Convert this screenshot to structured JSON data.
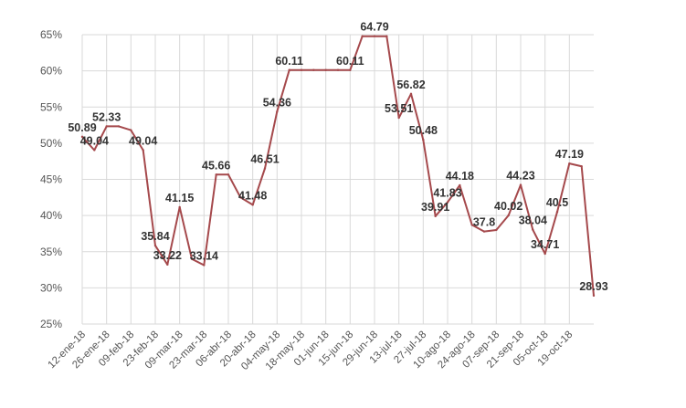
{
  "chart_data": {
    "type": "line",
    "title": "",
    "xlabel": "",
    "ylabel": "",
    "ylim": [
      25,
      65
    ],
    "yticks": [
      "25%",
      "30%",
      "35%",
      "40%",
      "45%",
      "50%",
      "55%",
      "60%",
      "65%"
    ],
    "xticks": [
      "12-ene-18",
      "26-ene-18",
      "09-feb-18",
      "23-feb-18",
      "09-mar-18",
      "23-mar-18",
      "06-abr-18",
      "20-abr-18",
      "04-may-18",
      "18-may-18",
      "01-jun-18",
      "15-jun-18",
      "29-jun-18",
      "13-jul-18",
      "27-jul-18",
      "10-ago-18",
      "24-ago-18",
      "07-sep-18",
      "21-sep-18",
      "05-oct-18",
      "19-oct-18"
    ],
    "grid": true,
    "line_color": "#a5494c",
    "series": [
      {
        "points": [
          {
            "x": 0,
            "y": 50.89,
            "label": "50.89"
          },
          {
            "x": 1,
            "y": 49.04,
            "label": "49.04"
          },
          {
            "x": 2,
            "y": 52.33,
            "label": "52.33"
          },
          {
            "x": 3,
            "y": 52.33,
            "label": ""
          },
          {
            "x": 4,
            "y": 51.8,
            "label": ""
          },
          {
            "x": 5,
            "y": 49.04,
            "label": "49.04"
          },
          {
            "x": 6,
            "y": 35.84,
            "label": "35.84"
          },
          {
            "x": 7,
            "y": 33.22,
            "label": "33.22"
          },
          {
            "x": 8,
            "y": 41.15,
            "label": "41.15"
          },
          {
            "x": 9,
            "y": 34.0,
            "label": ""
          },
          {
            "x": 10,
            "y": 33.14,
            "label": "33.14"
          },
          {
            "x": 11,
            "y": 45.66,
            "label": "45.66"
          },
          {
            "x": 12,
            "y": 45.66,
            "label": ""
          },
          {
            "x": 13,
            "y": 42.5,
            "label": ""
          },
          {
            "x": 14,
            "y": 41.48,
            "label": "41.48"
          },
          {
            "x": 15,
            "y": 46.51,
            "label": "46.51"
          },
          {
            "x": 16,
            "y": 54.36,
            "label": "54.36"
          },
          {
            "x": 17,
            "y": 60.11,
            "label": "60.11"
          },
          {
            "x": 18,
            "y": 60.11,
            "label": ""
          },
          {
            "x": 19,
            "y": 60.11,
            "label": ""
          },
          {
            "x": 20,
            "y": 60.11,
            "label": ""
          },
          {
            "x": 21,
            "y": 60.11,
            "label": ""
          },
          {
            "x": 22,
            "y": 60.11,
            "label": "60.11"
          },
          {
            "x": 23,
            "y": 64.79,
            "label": ""
          },
          {
            "x": 24,
            "y": 64.79,
            "label": "64.79"
          },
          {
            "x": 25,
            "y": 64.79,
            "label": ""
          },
          {
            "x": 26,
            "y": 53.51,
            "label": "53.51"
          },
          {
            "x": 27,
            "y": 56.82,
            "label": "56.82"
          },
          {
            "x": 28,
            "y": 50.48,
            "label": "50.48"
          },
          {
            "x": 29,
            "y": 39.91,
            "label": "39.91"
          },
          {
            "x": 30,
            "y": 41.83,
            "label": "41.83"
          },
          {
            "x": 31,
            "y": 44.18,
            "label": "44.18"
          },
          {
            "x": 32,
            "y": 38.7,
            "label": ""
          },
          {
            "x": 33,
            "y": 37.8,
            "label": "37.8"
          },
          {
            "x": 34,
            "y": 38.0,
            "label": ""
          },
          {
            "x": 35,
            "y": 40.02,
            "label": "40.02"
          },
          {
            "x": 36,
            "y": 44.23,
            "label": "44.23"
          },
          {
            "x": 37,
            "y": 38.04,
            "label": "38.04"
          },
          {
            "x": 38,
            "y": 34.71,
            "label": "34.71"
          },
          {
            "x": 39,
            "y": 40.5,
            "label": "40.5"
          },
          {
            "x": 40,
            "y": 47.19,
            "label": "47.19"
          },
          {
            "x": 41,
            "y": 46.8,
            "label": ""
          },
          {
            "x": 42,
            "y": 28.93,
            "label": "28.93"
          }
        ]
      }
    ]
  }
}
